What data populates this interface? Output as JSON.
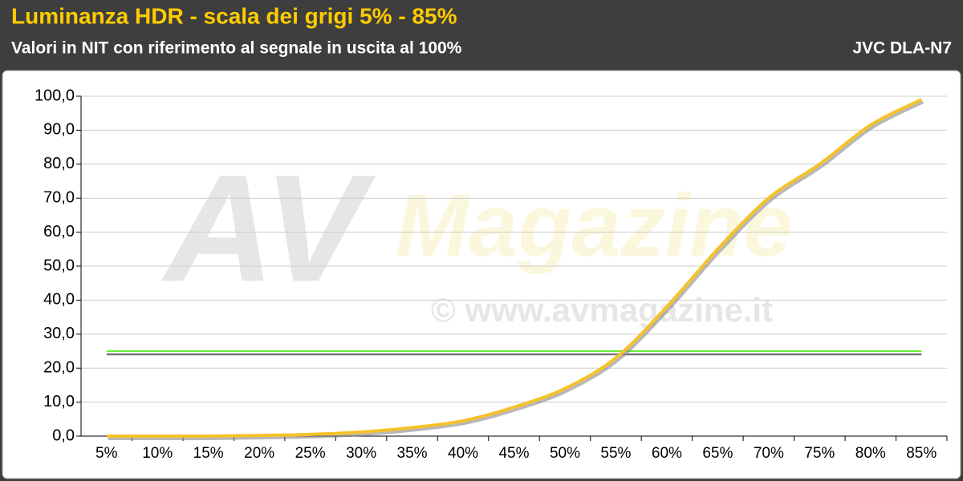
{
  "chart_data": {
    "type": "line",
    "title": "Luminanza HDR - scala dei grigi 5% - 85%",
    "subtitle": "Valori in NIT con riferimento al segnale in uscita al 100%",
    "device": "JVC DLA-N7",
    "watermark": [
      "AV",
      "Magazine",
      "© www.avmagazine.it"
    ],
    "categories": [
      "5%",
      "10%",
      "15%",
      "20%",
      "25%",
      "30%",
      "35%",
      "40%",
      "45%",
      "50%",
      "55%",
      "60%",
      "65%",
      "70%",
      "75%",
      "80%",
      "85%"
    ],
    "series": [
      {
        "color": "#f5c22a",
        "values": [
          0,
          0,
          0,
          0.2,
          0.5,
          1.2,
          2.5,
          4.5,
          8.5,
          14,
          23,
          38,
          55,
          70,
          80,
          91.5,
          99
        ]
      }
    ],
    "reference": {
      "value": 25,
      "color": "#66ee33"
    },
    "ylim": [
      0,
      100
    ],
    "yticks": [
      {
        "value": 0,
        "label": "0,0"
      },
      {
        "value": 10,
        "label": "10,0"
      },
      {
        "value": 20,
        "label": "20,0"
      },
      {
        "value": 30,
        "label": "30,0"
      },
      {
        "value": 40,
        "label": "40,0"
      },
      {
        "value": 50,
        "label": "50,0"
      },
      {
        "value": 60,
        "label": "60,0"
      },
      {
        "value": 70,
        "label": "70,0"
      },
      {
        "value": 80,
        "label": "80,0"
      },
      {
        "value": 90,
        "label": "90,0"
      },
      {
        "value": 100,
        "label": "100,0"
      }
    ],
    "grid": true
  }
}
